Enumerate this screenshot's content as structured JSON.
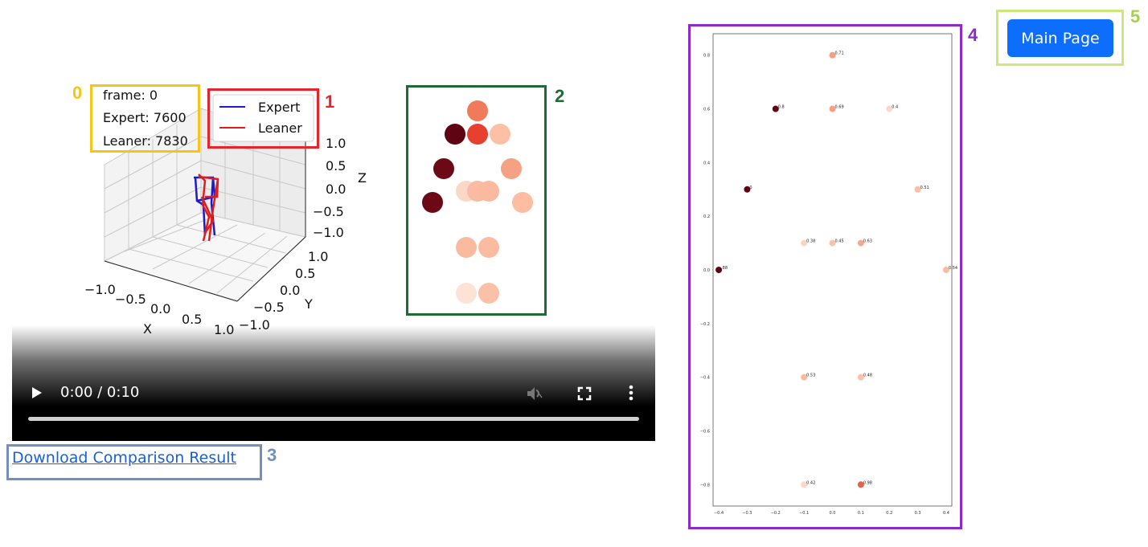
{
  "annotations": {
    "labels": [
      "0",
      "1",
      "2",
      "3",
      "4",
      "5"
    ],
    "colors": [
      "#f5c518",
      "#e8232a",
      "#1e6b35",
      "#7390bd",
      "#8b2bc9",
      "#cde87a"
    ]
  },
  "frame_info": {
    "frame": "frame: 0",
    "expert": "Expert: 7600",
    "leaner": "Leaner: 7830"
  },
  "legend": {
    "expert_label": "Expert",
    "leaner_label": "Leaner",
    "expert_color": "#1b1bcc",
    "leaner_color": "#e01c1c"
  },
  "axes3d": {
    "z_label": "Z",
    "y_label": "Y",
    "x_label": "X",
    "z_ticks": [
      "1.0",
      "0.5",
      "0.0",
      "−0.5",
      "−1.0"
    ],
    "y_ticks": [
      "1.0",
      "0.5",
      "0.0",
      "−0.5",
      "−1.0"
    ],
    "x_ticks": [
      "−1.0",
      "−0.5",
      "0.0",
      "0.5",
      "1.0"
    ]
  },
  "video": {
    "time": "0:00 / 0:10",
    "progress_fraction": 0,
    "play_icon": "play-icon",
    "mute_icon": "volume-muted-icon",
    "fullscreen_icon": "fullscreen-icon",
    "more_icon": "more-vertical-icon"
  },
  "heatmap_body": {
    "dots": [
      "#f07a5a",
      "#5e0412",
      "#e8402e",
      "#fcc0a4",
      "#6b0a16",
      "#f7a184",
      "#fcd7c5",
      "#fbbba2",
      "#fbbaa0",
      "#6b0a16",
      "#fcbda3",
      "#fabaa0",
      "#fbbba0",
      "#fde2d6",
      "#fbc1a8"
    ]
  },
  "download": {
    "label": "Download Comparison Result"
  },
  "nav": {
    "main_page_label": "Main Page"
  },
  "chart_data": {
    "type": "scatter",
    "title": "",
    "xlabel": "",
    "ylabel": "",
    "xlim": [
      -0.42,
      0.42
    ],
    "ylim": [
      -0.88,
      0.88
    ],
    "x_ticks": [
      "−0.4",
      "−0.3",
      "−0.2",
      "−0.1",
      "0.0",
      "0.1",
      "0.2",
      "0.3",
      "0.4"
    ],
    "y_ticks": [
      "0.8",
      "0.6",
      "0.4",
      "0.2",
      "0.0",
      "−0.2",
      "−0.4",
      "−0.6",
      "−0.8"
    ],
    "x_tick_values": [
      -0.4,
      -0.3,
      -0.2,
      -0.1,
      0.0,
      0.1,
      0.2,
      0.3,
      0.4
    ],
    "y_tick_values": [
      0.8,
      0.6,
      0.4,
      0.2,
      0.0,
      -0.2,
      -0.4,
      -0.6,
      -0.8
    ],
    "points": [
      {
        "x": 0.0,
        "y": 0.8,
        "label": "0.71",
        "color": "#f4a07f"
      },
      {
        "x": -0.2,
        "y": 0.6,
        "label": "0.8",
        "color": "#5e0412"
      },
      {
        "x": 0.0,
        "y": 0.6,
        "label": "0.69",
        "color": "#f5a283"
      },
      {
        "x": 0.2,
        "y": 0.6,
        "label": "0.4",
        "color": "#fcd9ca"
      },
      {
        "x": -0.3,
        "y": 0.3,
        "label": "0",
        "color": "#5e0412"
      },
      {
        "x": 0.3,
        "y": 0.3,
        "label": "0.51",
        "color": "#fbbfa5"
      },
      {
        "x": -0.1,
        "y": 0.1,
        "label": "0.38",
        "color": "#fcd3c1"
      },
      {
        "x": 0.0,
        "y": 0.1,
        "label": "0.45",
        "color": "#fbc3aa"
      },
      {
        "x": 0.1,
        "y": 0.1,
        "label": "0.63",
        "color": "#f7a688"
      },
      {
        "x": -0.4,
        "y": 0.0,
        "label": ".88",
        "color": "#5e0412"
      },
      {
        "x": 0.4,
        "y": 0.0,
        "label": "0.54",
        "color": "#fbbba0"
      },
      {
        "x": -0.1,
        "y": -0.4,
        "label": "0.53",
        "color": "#fbbba0"
      },
      {
        "x": 0.1,
        "y": -0.4,
        "label": "0.48",
        "color": "#fbc2a9"
      },
      {
        "x": -0.1,
        "y": -0.8,
        "label": "0.42",
        "color": "#fcd8c8"
      },
      {
        "x": 0.1,
        "y": -0.8,
        "label": "0.98",
        "color": "#e0634a"
      }
    ]
  }
}
